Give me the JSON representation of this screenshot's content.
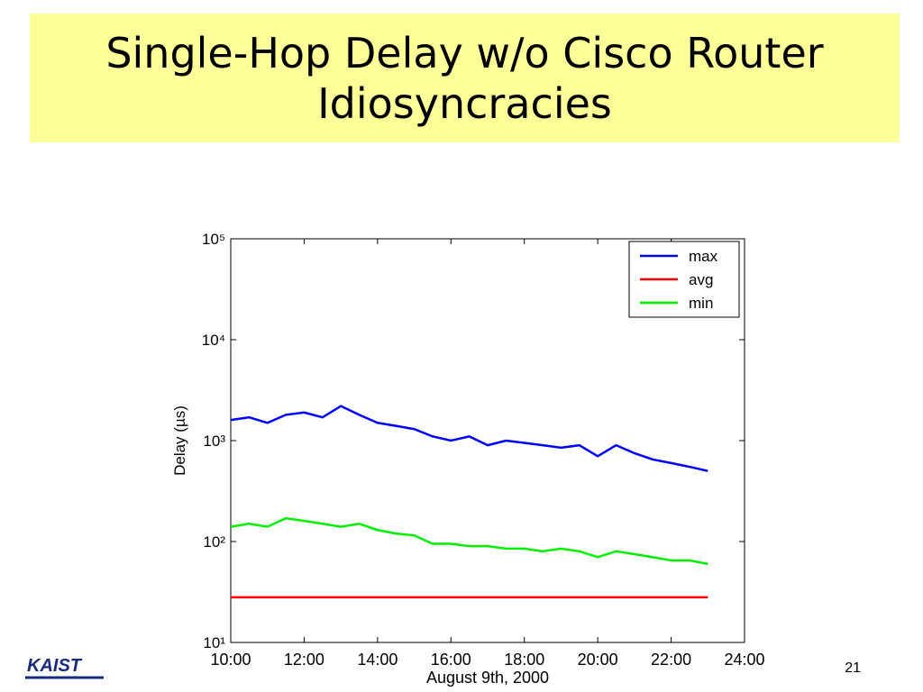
{
  "title": "Single-Hop Delay w/o Cisco Router Idiosyncracies",
  "logo": "KAIST",
  "page_number": "21",
  "chart_data": {
    "type": "line",
    "xlabel": "August 9th, 2000",
    "ylabel": "Delay (µs)",
    "log_y": true,
    "grid": false,
    "legend": "upper right",
    "x": [
      10,
      10.5,
      11,
      11.5,
      12,
      12.5,
      13,
      13.5,
      14,
      14.5,
      15,
      15.5,
      16,
      16.5,
      17,
      17.5,
      18,
      18.5,
      19,
      19.5,
      20,
      20.5,
      21,
      21.5,
      22,
      22.5,
      23
    ],
    "xlim": [
      10,
      24
    ],
    "xticks": [
      {
        "value": 10,
        "label": "10:00"
      },
      {
        "value": 12,
        "label": "12:00"
      },
      {
        "value": 14,
        "label": "14:00"
      },
      {
        "value": 16,
        "label": "16:00"
      },
      {
        "value": 18,
        "label": "18:00"
      },
      {
        "value": 20,
        "label": "20:00"
      },
      {
        "value": 22,
        "label": "22:00"
      },
      {
        "value": 24,
        "label": "24:00"
      }
    ],
    "ylim": [
      10,
      100000
    ],
    "yticks": [
      {
        "value": 10,
        "label": "10¹"
      },
      {
        "value": 100,
        "label": "10²"
      },
      {
        "value": 1000,
        "label": "10³"
      },
      {
        "value": 10000,
        "label": "10⁴"
      },
      {
        "value": 100000,
        "label": "10⁵"
      }
    ],
    "series": [
      {
        "name": "max",
        "color": "#0000ff",
        "values": [
          1600,
          1700,
          1500,
          1800,
          1900,
          1700,
          2200,
          1800,
          1500,
          1400,
          1300,
          1100,
          1000,
          1100,
          900,
          1000,
          950,
          900,
          850,
          900,
          700,
          900,
          750,
          650,
          600,
          550,
          500
        ]
      },
      {
        "name": "avg",
        "color": "#ff0000",
        "values": [
          28,
          28,
          28,
          28,
          28,
          28,
          28,
          28,
          28,
          28,
          28,
          28,
          28,
          28,
          28,
          28,
          28,
          28,
          28,
          28,
          28,
          28,
          28,
          28,
          28,
          28,
          28
        ]
      },
      {
        "name": "min",
        "color": "#00ee00",
        "values": [
          140,
          150,
          140,
          170,
          160,
          150,
          140,
          150,
          130,
          120,
          115,
          95,
          95,
          90,
          90,
          85,
          85,
          80,
          85,
          80,
          70,
          80,
          75,
          70,
          65,
          65,
          60
        ]
      }
    ]
  }
}
